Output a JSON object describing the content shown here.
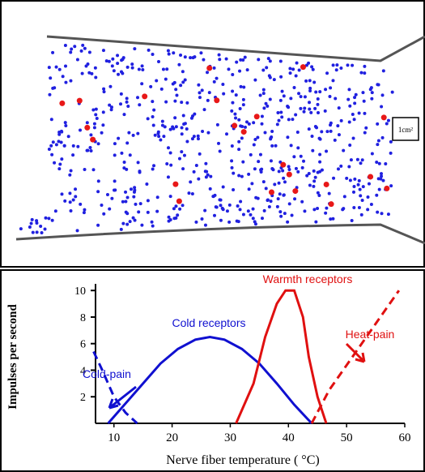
{
  "diagram": {
    "scale_label": "1cm²"
  },
  "chart_data": {
    "type": "line",
    "xlabel": "Nerve fiber temperature ( °C)",
    "ylabel": "Impulses per second",
    "xlim": [
      6,
      60
    ],
    "ylim": [
      0,
      10.5
    ],
    "xticks": [
      10,
      20,
      30,
      40,
      50,
      60
    ],
    "yticks": [
      2,
      4,
      6,
      8,
      10
    ],
    "series": [
      {
        "name": "Cold receptors",
        "color": "#1010d0",
        "dashed": false,
        "x": [
          9,
          12,
          15,
          18,
          21,
          24,
          26.5,
          29,
          32,
          35,
          38,
          41,
          44
        ],
        "values": [
          0,
          1.5,
          3,
          4.5,
          5.6,
          6.3,
          6.5,
          6.3,
          5.6,
          4.5,
          3,
          1.4,
          0
        ]
      },
      {
        "name": "Cold-pain",
        "color": "#1010d0",
        "dashed": true,
        "x": [
          6.5,
          8,
          10,
          12,
          14
        ],
        "values": [
          5.4,
          4,
          2,
          0.8,
          0
        ]
      },
      {
        "name": "Warmth receptors",
        "color": "#e01010",
        "dashed": false,
        "x": [
          31,
          34,
          36,
          38,
          39.5,
          41,
          42.5,
          43.5,
          45,
          46.5
        ],
        "values": [
          0,
          3,
          6.5,
          9,
          10,
          10,
          8,
          5,
          2,
          0
        ]
      },
      {
        "name": "Heat-pain",
        "color": "#e01010",
        "dashed": true,
        "x": [
          44,
          47,
          51,
          55,
          59
        ],
        "values": [
          0,
          2.5,
          5,
          7.5,
          10
        ]
      }
    ]
  }
}
